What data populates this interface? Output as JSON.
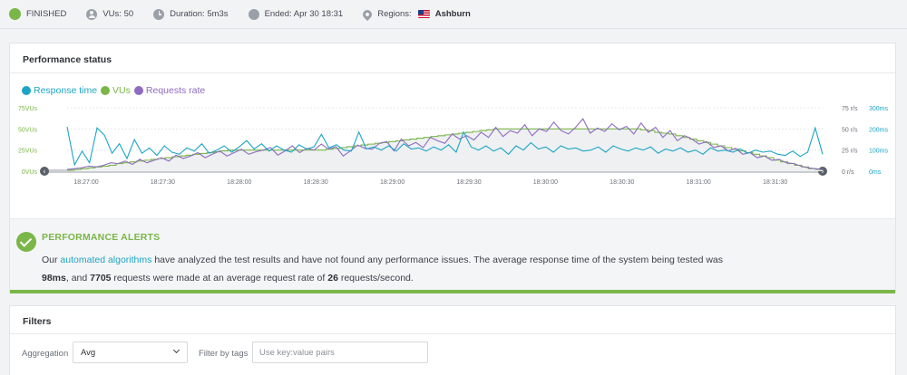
{
  "status": {
    "finished": "FINISHED",
    "vus": "VUs: 50",
    "duration": "Duration: 5m3s",
    "ended": "Ended: Apr 30 18:31",
    "regions_label": "Regions:",
    "region_name": "Ashburn"
  },
  "performance": {
    "title": "Performance status",
    "legend": [
      {
        "label": "Response time",
        "color": "#1da5c4"
      },
      {
        "label": "VUs",
        "color": "#7ab648"
      },
      {
        "label": "Requests rate",
        "color": "#8e6cc0"
      }
    ]
  },
  "chart_data": {
    "type": "line",
    "x_ticks": [
      "18:27:00",
      "18:27:30",
      "18:28:00",
      "18:28:30",
      "18:29:00",
      "18:29:30",
      "18:30:00",
      "18:30:30",
      "18:31:00",
      "18:31:30"
    ],
    "left_axis": {
      "ticks": [
        "75VUs",
        "50VUs",
        "25VUs",
        "0VUs"
      ],
      "ylim": [
        0,
        75
      ],
      "color": "#7ab648"
    },
    "right_axis_rate": {
      "ticks": [
        "75 r/s",
        "50 r/s",
        "25 r/s",
        "0 r/s"
      ],
      "ylim": [
        0,
        75
      ]
    },
    "right_axis_time": {
      "ticks": [
        "300ms",
        "200ms",
        "100ms",
        "0ms"
      ],
      "ylim": [
        0,
        300
      ]
    },
    "series": [
      {
        "name": "VUs",
        "axis": "left",
        "color": "#7ab648",
        "values": [
          1,
          2,
          3,
          4,
          5,
          6,
          7,
          9,
          10,
          11,
          12,
          13,
          14,
          15,
          16,
          17,
          18,
          19,
          20,
          21,
          22,
          23,
          24,
          25,
          25,
          25,
          25,
          25,
          25,
          25,
          25,
          25,
          25,
          25,
          25,
          25,
          25,
          26,
          27,
          28,
          29,
          30,
          31,
          32,
          33,
          34,
          35,
          36,
          37,
          38,
          39,
          40,
          41,
          42,
          43,
          44,
          45,
          46,
          47,
          48,
          49,
          50,
          50,
          50,
          50,
          50,
          50,
          50,
          50,
          50,
          50,
          50,
          50,
          50,
          50,
          50,
          50,
          50,
          50,
          50,
          50,
          50,
          49,
          48,
          46,
          45,
          44,
          42,
          40,
          38,
          36,
          34,
          32,
          30,
          28,
          26,
          24,
          22,
          20,
          18,
          16,
          13,
          11,
          9,
          7,
          5,
          3,
          2,
          1
        ]
      },
      {
        "name": "Requests rate",
        "axis": "right_rate",
        "color": "#8e6cc0",
        "values": [
          2,
          3,
          4,
          6,
          5,
          7,
          10,
          9,
          12,
          8,
          14,
          10,
          13,
          16,
          12,
          19,
          15,
          18,
          22,
          16,
          20,
          24,
          18,
          22,
          26,
          20,
          23,
          25,
          28,
          19,
          24,
          30,
          22,
          27,
          25,
          32,
          26,
          29,
          18,
          24,
          31,
          27,
          26,
          33,
          35,
          24,
          38,
          30,
          34,
          28,
          40,
          36,
          33,
          44,
          38,
          42,
          37,
          46,
          40,
          52,
          41,
          48,
          45,
          55,
          42,
          50,
          47,
          58,
          48,
          44,
          52,
          62,
          45,
          51,
          47,
          56,
          49,
          53,
          44,
          57,
          46,
          52,
          40,
          48,
          36,
          42,
          38,
          32,
          35,
          28,
          30,
          24,
          27,
          20,
          22,
          16,
          18,
          13,
          14,
          10,
          9,
          6,
          4,
          3,
          2
        ]
      },
      {
        "name": "Response time",
        "axis": "right_time",
        "color": "#1da5c4",
        "values": [
          210,
          30,
          95,
          40,
          205,
          170,
          85,
          130,
          60,
          150,
          85,
          110,
          75,
          120,
          90,
          80,
          110,
          95,
          130,
          85,
          100,
          120,
          90,
          115,
          145,
          105,
          130,
          95,
          120,
          100,
          90,
          125,
          105,
          115,
          175,
          110,
          125,
          100,
          95,
          185,
          105,
          115,
          100,
          120,
          95,
          130,
          105,
          110,
          95,
          115,
          100,
          125,
          90,
          185,
          115,
          100,
          120,
          95,
          110,
          80,
          120,
          100,
          135,
          105,
          115,
          90,
          120,
          105,
          110,
          95,
          100,
          115,
          90,
          120,
          105,
          95,
          110,
          100,
          115,
          85,
          105,
          95,
          110,
          90,
          100,
          80,
          110,
          95,
          100,
          90,
          105,
          85,
          100,
          90,
          95,
          80,
          75,
          95,
          70,
          90,
          205,
          80
        ]
      }
    ]
  },
  "alerts": {
    "title": "PERFORMANCE ALERTS",
    "line1_pre": "Our ",
    "link": "automated algorithms",
    "line1_post": " have analyzed the test results and have not found any performance issues. The average response time of the system being tested was",
    "avg_response": "98ms",
    "mid1": ", and ",
    "requests": "7705",
    "mid2": " requests were made at an average request rate of ",
    "rate": "26",
    "end": " requests/second."
  },
  "filters": {
    "title": "Filters",
    "aggregation_label": "Aggregation",
    "aggregation_value": "Avg",
    "tags_label": "Filter by tags",
    "tags_placeholder": "Use key:value pairs"
  }
}
